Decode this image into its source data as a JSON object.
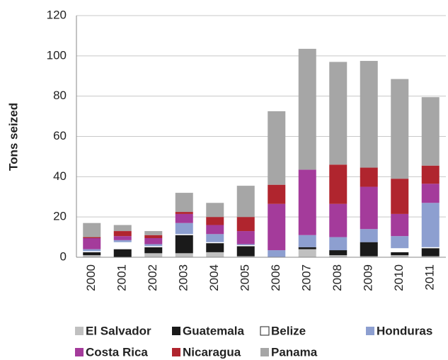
{
  "chart_data": {
    "type": "stacked_bar",
    "y_label": "Tons seized",
    "categories": [
      "2000",
      "2001",
      "2002",
      "2003",
      "2004",
      "2005",
      "2006",
      "2007",
      "2008",
      "2009",
      "2010",
      "2011"
    ],
    "series": [
      {
        "name": "El Salvador",
        "color": "#c0c0c0",
        "values": [
          1,
          0,
          2,
          2,
          2.5,
          0.5,
          0,
          4,
          1,
          0.5,
          1,
          0.5
        ]
      },
      {
        "name": "Guatemala",
        "color": "#1a1a1a",
        "values": [
          1.5,
          4,
          3,
          9,
          4.5,
          5,
          0,
          1,
          2.5,
          7,
          1.5,
          4
        ]
      },
      {
        "name": "Belize",
        "color": "#ffffff",
        "values": [
          0.5,
          3.5,
          0.5,
          0.5,
          0.5,
          0.5,
          0,
          0,
          0,
          0,
          2,
          0.5
        ]
      },
      {
        "name": "Honduras",
        "color": "#8d9fd0",
        "values": [
          1,
          1,
          1,
          5.5,
          4,
          0.5,
          3.5,
          6,
          6.5,
          6.5,
          6,
          22
        ]
      },
      {
        "name": "Costa Rica",
        "color": "#a43b9b",
        "values": [
          5.5,
          2,
          3,
          4.5,
          4.5,
          6.5,
          23,
          32.5,
          16.5,
          21,
          11,
          9.5
        ]
      },
      {
        "name": "Nicaragua",
        "color": "#b0252e",
        "values": [
          0.5,
          2.5,
          1.5,
          1,
          4,
          7,
          9.5,
          0,
          19.5,
          9.5,
          17.5,
          9
        ]
      },
      {
        "name": "Panama",
        "color": "#a6a6a6",
        "values": [
          7,
          3,
          2,
          9.5,
          7,
          15.5,
          36.5,
          60,
          51,
          53,
          49.5,
          34
        ]
      }
    ],
    "ylim": [
      0,
      120
    ],
    "yticks": [
      0,
      20,
      40,
      60,
      80,
      100,
      120
    ],
    "grid": true
  }
}
